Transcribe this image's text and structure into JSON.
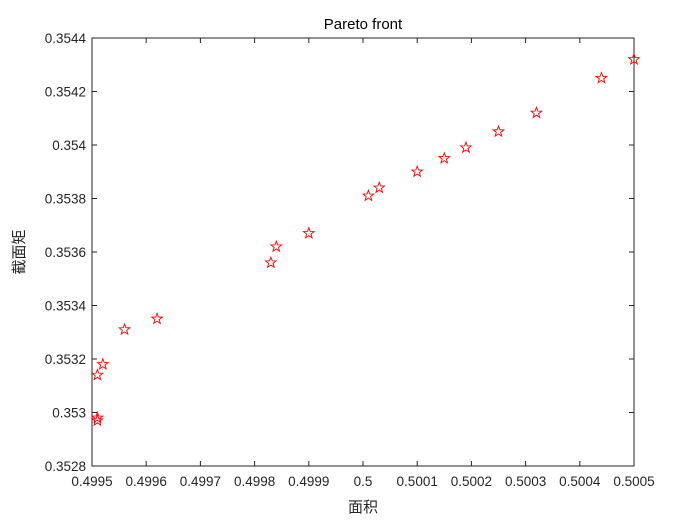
{
  "chart_data": {
    "type": "scatter",
    "title": "Pareto front",
    "xlabel": "面积",
    "ylabel": "截面矩",
    "xlim": [
      0.4995,
      0.5005
    ],
    "ylim": [
      0.3528,
      0.3544
    ],
    "x_ticks": [
      0.4995,
      0.4996,
      0.4997,
      0.4998,
      0.4999,
      0.5,
      0.5001,
      0.5002,
      0.5003,
      0.5004,
      0.5005
    ],
    "x_tick_labels": [
      "0.4995",
      "0.4996",
      "0.4997",
      "0.4998",
      "0.4999",
      "0.5",
      "0.5001",
      "0.5002",
      "0.5003",
      "0.5004",
      "0.5005"
    ],
    "y_ticks": [
      0.3528,
      0.353,
      0.3532,
      0.3534,
      0.3536,
      0.3538,
      0.354,
      0.3542,
      0.3544
    ],
    "y_tick_labels": [
      "0.3528",
      "0.353",
      "0.3532",
      "0.3534",
      "0.3536",
      "0.3538",
      "0.354",
      "0.3542",
      "0.3544"
    ],
    "grid": false,
    "marker": "pentagram",
    "marker_color": "#ff0000",
    "axis_color": "#262626",
    "series": [
      {
        "x": [
          0.49951,
          0.49951,
          0.49951,
          0.49952,
          0.49956,
          0.49962,
          0.49983,
          0.49984,
          0.4999,
          0.50001,
          0.50003,
          0.5001,
          0.50015,
          0.50019,
          0.50025,
          0.50032,
          0.50044,
          0.5005
        ],
        "y": [
          0.35297,
          0.35298,
          0.35314,
          0.35318,
          0.35331,
          0.35335,
          0.35356,
          0.35362,
          0.35367,
          0.35381,
          0.35384,
          0.3539,
          0.35395,
          0.35399,
          0.35405,
          0.35412,
          0.35425,
          0.35432
        ]
      }
    ]
  }
}
